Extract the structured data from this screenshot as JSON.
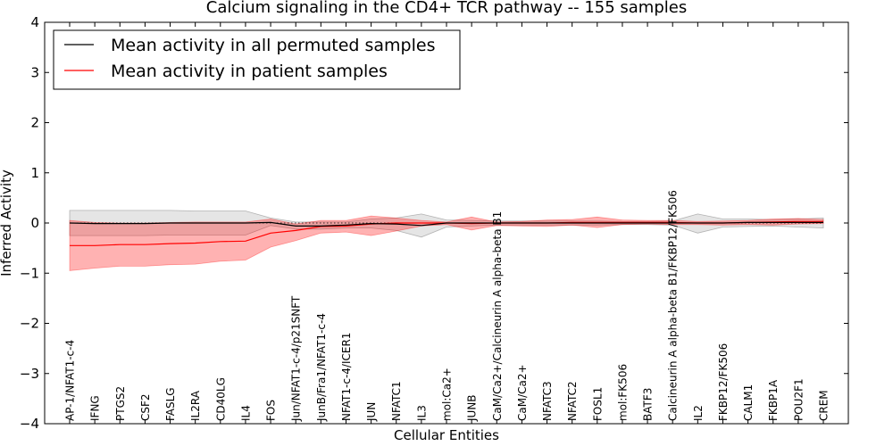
{
  "chart_data": {
    "type": "line",
    "title": "Calcium signaling in the CD4+ TCR pathway -- 155 samples",
    "xlabel": "Cellular Entities",
    "ylabel": "Inferred Activity",
    "ylim": [
      -4,
      4
    ],
    "yticks": [
      -4,
      -3,
      -2,
      -1,
      0,
      1,
      2,
      3,
      4
    ],
    "grid": false,
    "legend_position": "top-left",
    "categories": [
      "AP-1/NFAT1-c-4",
      "IFNG",
      "PTGS2",
      "CSF2",
      "FASLG",
      "IL2RA",
      "CD40LG",
      "IL4",
      "FOS",
      "Jun/NFAT1-c-4/p21SNFT",
      "JunB/Fra1/NFAT1-c-4",
      "NFAT1-c-4/ICER1",
      "JUN",
      "NFATC1",
      "IL3",
      "mol:Ca2+",
      "JUNB",
      "CaM/Ca2+/Calcineurin A alpha-beta B1",
      "CaM/Ca2+",
      "NFATC3",
      "NFATC2",
      "FOSL1",
      "mol:FK506",
      "BATF3",
      "Calcineurin A alpha-beta B1/FKBP12/FK506",
      "IL2",
      "FKBP12/FK506",
      "CALM1",
      "FKBP1A",
      "POU2F1",
      "CREM"
    ],
    "series": [
      {
        "name": "Mean activity in all permuted samples",
        "color": "#000000",
        "values": [
          0.0,
          -0.01,
          -0.01,
          -0.01,
          0.0,
          0.0,
          0.0,
          0.0,
          0.01,
          -0.06,
          -0.06,
          -0.04,
          -0.01,
          -0.02,
          -0.05,
          0.0,
          0.0,
          0.0,
          0.0,
          0.0,
          0.0,
          0.0,
          0.0,
          0.0,
          0.0,
          0.0,
          0.0,
          0.01,
          0.01,
          0.01,
          0.01
        ],
        "band_lower": [
          -0.25,
          -0.25,
          -0.25,
          -0.25,
          -0.24,
          -0.24,
          -0.24,
          -0.24,
          -0.05,
          -0.12,
          -0.12,
          -0.1,
          -0.1,
          -0.15,
          -0.28,
          -0.08,
          -0.06,
          -0.04,
          -0.04,
          -0.04,
          -0.04,
          -0.04,
          -0.03,
          -0.03,
          -0.04,
          -0.2,
          -0.08,
          -0.07,
          -0.06,
          -0.08,
          -0.1
        ],
        "band_upper": [
          0.25,
          0.25,
          0.25,
          0.25,
          0.25,
          0.24,
          0.24,
          0.24,
          0.1,
          0.02,
          0.02,
          0.02,
          0.08,
          0.1,
          0.18,
          0.06,
          0.05,
          0.04,
          0.04,
          0.04,
          0.04,
          0.04,
          0.03,
          0.03,
          0.04,
          0.18,
          0.08,
          0.08,
          0.07,
          0.08,
          0.1
        ]
      },
      {
        "name": "Mean activity in patient samples",
        "color": "#ff0000",
        "fill_color": "#ff0000",
        "values": [
          -0.45,
          -0.45,
          -0.43,
          -0.43,
          -0.41,
          -0.4,
          -0.37,
          -0.36,
          -0.2,
          -0.15,
          -0.07,
          -0.06,
          -0.02,
          0.0,
          0.0,
          0.0,
          -0.01,
          0.0,
          0.0,
          0.0,
          0.01,
          0.01,
          0.01,
          0.01,
          0.01,
          0.0,
          0.0,
          0.01,
          0.02,
          0.03,
          0.03
        ],
        "band_lower": [
          -0.95,
          -0.9,
          -0.86,
          -0.86,
          -0.83,
          -0.82,
          -0.76,
          -0.74,
          -0.48,
          -0.35,
          -0.2,
          -0.18,
          -0.25,
          -0.16,
          -0.06,
          -0.03,
          -0.14,
          -0.05,
          -0.06,
          -0.07,
          -0.04,
          -0.09,
          -0.03,
          -0.02,
          -0.03,
          -0.03,
          -0.04,
          -0.03,
          -0.04,
          -0.02,
          -0.01
        ],
        "band_upper": [
          0.05,
          0.01,
          0.0,
          0.0,
          0.01,
          0.02,
          0.02,
          0.02,
          0.08,
          -0.02,
          0.05,
          0.05,
          0.14,
          0.1,
          0.05,
          0.02,
          0.12,
          0.02,
          0.03,
          0.06,
          0.07,
          0.12,
          0.06,
          0.05,
          0.05,
          0.03,
          0.04,
          0.05,
          0.08,
          0.09,
          0.07
        ]
      }
    ]
  }
}
